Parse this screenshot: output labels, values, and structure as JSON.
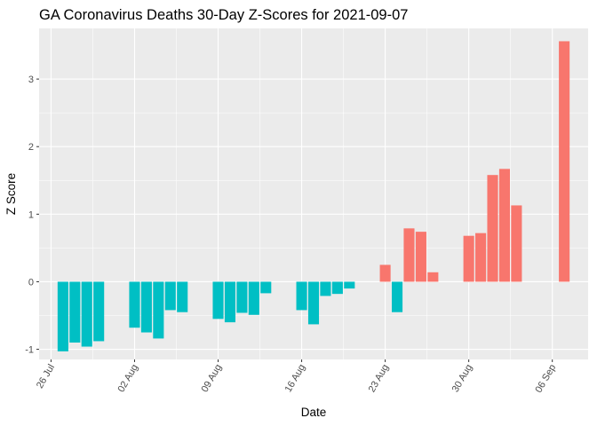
{
  "chart_data": {
    "type": "bar",
    "title": "GA Coronavirus Deaths 30-Day Z-Scores for 2021-09-07",
    "xlabel": "Date",
    "ylabel": "Z Score",
    "x_domain": [
      "2021-07-25",
      "2021-09-09"
    ],
    "ylim": [
      -1.15,
      3.75
    ],
    "y_ticks": [
      -1,
      0,
      1,
      2,
      3
    ],
    "y_tick_labels": [
      "-1",
      "0",
      "1",
      "2",
      "3"
    ],
    "x_ticks": [
      {
        "date": "2021-07-26",
        "label": "26 Jul"
      },
      {
        "date": "2021-08-02",
        "label": "02 Aug"
      },
      {
        "date": "2021-08-09",
        "label": "09 Aug"
      },
      {
        "date": "2021-08-16",
        "label": "16 Aug"
      },
      {
        "date": "2021-08-23",
        "label": "23 Aug"
      },
      {
        "date": "2021-08-30",
        "label": "30 Aug"
      },
      {
        "date": "2021-09-06",
        "label": "06 Sep"
      }
    ],
    "colors": {
      "positive": "#F8766D",
      "negative": "#00BFC4",
      "panel": "#EBEBEB",
      "grid": "#FFFFFF"
    },
    "grid": true,
    "legend": "none",
    "bars": [
      {
        "date": "2021-07-27",
        "value": -1.03
      },
      {
        "date": "2021-07-28",
        "value": -0.9
      },
      {
        "date": "2021-07-29",
        "value": -0.96
      },
      {
        "date": "2021-07-30",
        "value": -0.88
      },
      {
        "date": "2021-08-02",
        "value": -0.68
      },
      {
        "date": "2021-08-03",
        "value": -0.75
      },
      {
        "date": "2021-08-04",
        "value": -0.84
      },
      {
        "date": "2021-08-05",
        "value": -0.42
      },
      {
        "date": "2021-08-06",
        "value": -0.45
      },
      {
        "date": "2021-08-09",
        "value": -0.55
      },
      {
        "date": "2021-08-10",
        "value": -0.6
      },
      {
        "date": "2021-08-11",
        "value": -0.46
      },
      {
        "date": "2021-08-12",
        "value": -0.49
      },
      {
        "date": "2021-08-13",
        "value": -0.17
      },
      {
        "date": "2021-08-16",
        "value": -0.42
      },
      {
        "date": "2021-08-17",
        "value": -0.63
      },
      {
        "date": "2021-08-18",
        "value": -0.21
      },
      {
        "date": "2021-08-19",
        "value": -0.18
      },
      {
        "date": "2021-08-20",
        "value": -0.1
      },
      {
        "date": "2021-08-23",
        "value": 0.25
      },
      {
        "date": "2021-08-24",
        "value": -0.45
      },
      {
        "date": "2021-08-25",
        "value": 0.79
      },
      {
        "date": "2021-08-26",
        "value": 0.74
      },
      {
        "date": "2021-08-27",
        "value": 0.14
      },
      {
        "date": "2021-08-30",
        "value": 0.68
      },
      {
        "date": "2021-08-31",
        "value": 0.72
      },
      {
        "date": "2021-09-01",
        "value": 1.58
      },
      {
        "date": "2021-09-02",
        "value": 1.67
      },
      {
        "date": "2021-09-03",
        "value": 1.13
      },
      {
        "date": "2021-09-07",
        "value": 3.56
      }
    ]
  }
}
